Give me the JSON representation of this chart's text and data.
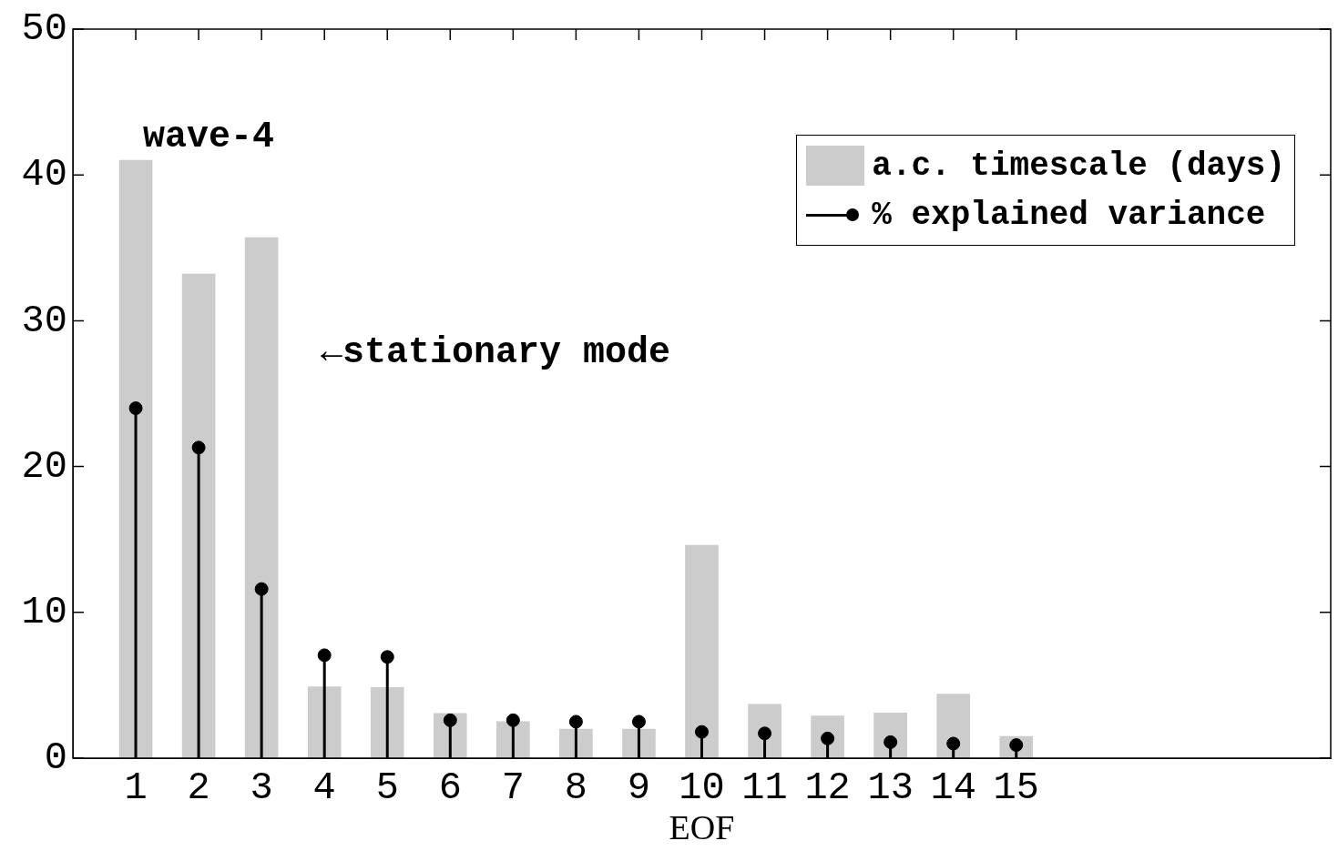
{
  "chart_data": {
    "type": "bar",
    "xlabel": "EOF",
    "x": [
      1,
      2,
      3,
      4,
      5,
      6,
      7,
      8,
      9,
      10,
      11,
      12,
      13,
      14,
      15
    ],
    "series": [
      {
        "name": "a.c. timescale (days)",
        "color": "#cccccc",
        "values": [
          41.0,
          33.2,
          35.7,
          4.9,
          4.85,
          3.07,
          2.5,
          2.0,
          2.0,
          14.6,
          3.7,
          2.9,
          3.1,
          4.4,
          1.5
        ]
      },
      {
        "name": "% explained variance",
        "type": "lollipop",
        "color": "#000000",
        "values": [
          24.0,
          21.3,
          11.6,
          7.06,
          6.94,
          2.6,
          2.6,
          2.5,
          2.5,
          1.8,
          1.7,
          1.35,
          1.1,
          1.0,
          0.9
        ]
      }
    ],
    "xlim": [
      0,
      20
    ],
    "xticks": [
      1,
      2,
      3,
      4,
      5,
      6,
      7,
      8,
      9,
      10,
      11,
      12,
      13,
      14,
      15
    ],
    "ylim": [
      0,
      50
    ],
    "yticks": [
      0,
      10,
      20,
      30,
      40,
      50
    ],
    "grid": false,
    "legend": "top right",
    "marker": "circle",
    "annotations": [
      "wave-4",
      "←stationary mode"
    ]
  }
}
